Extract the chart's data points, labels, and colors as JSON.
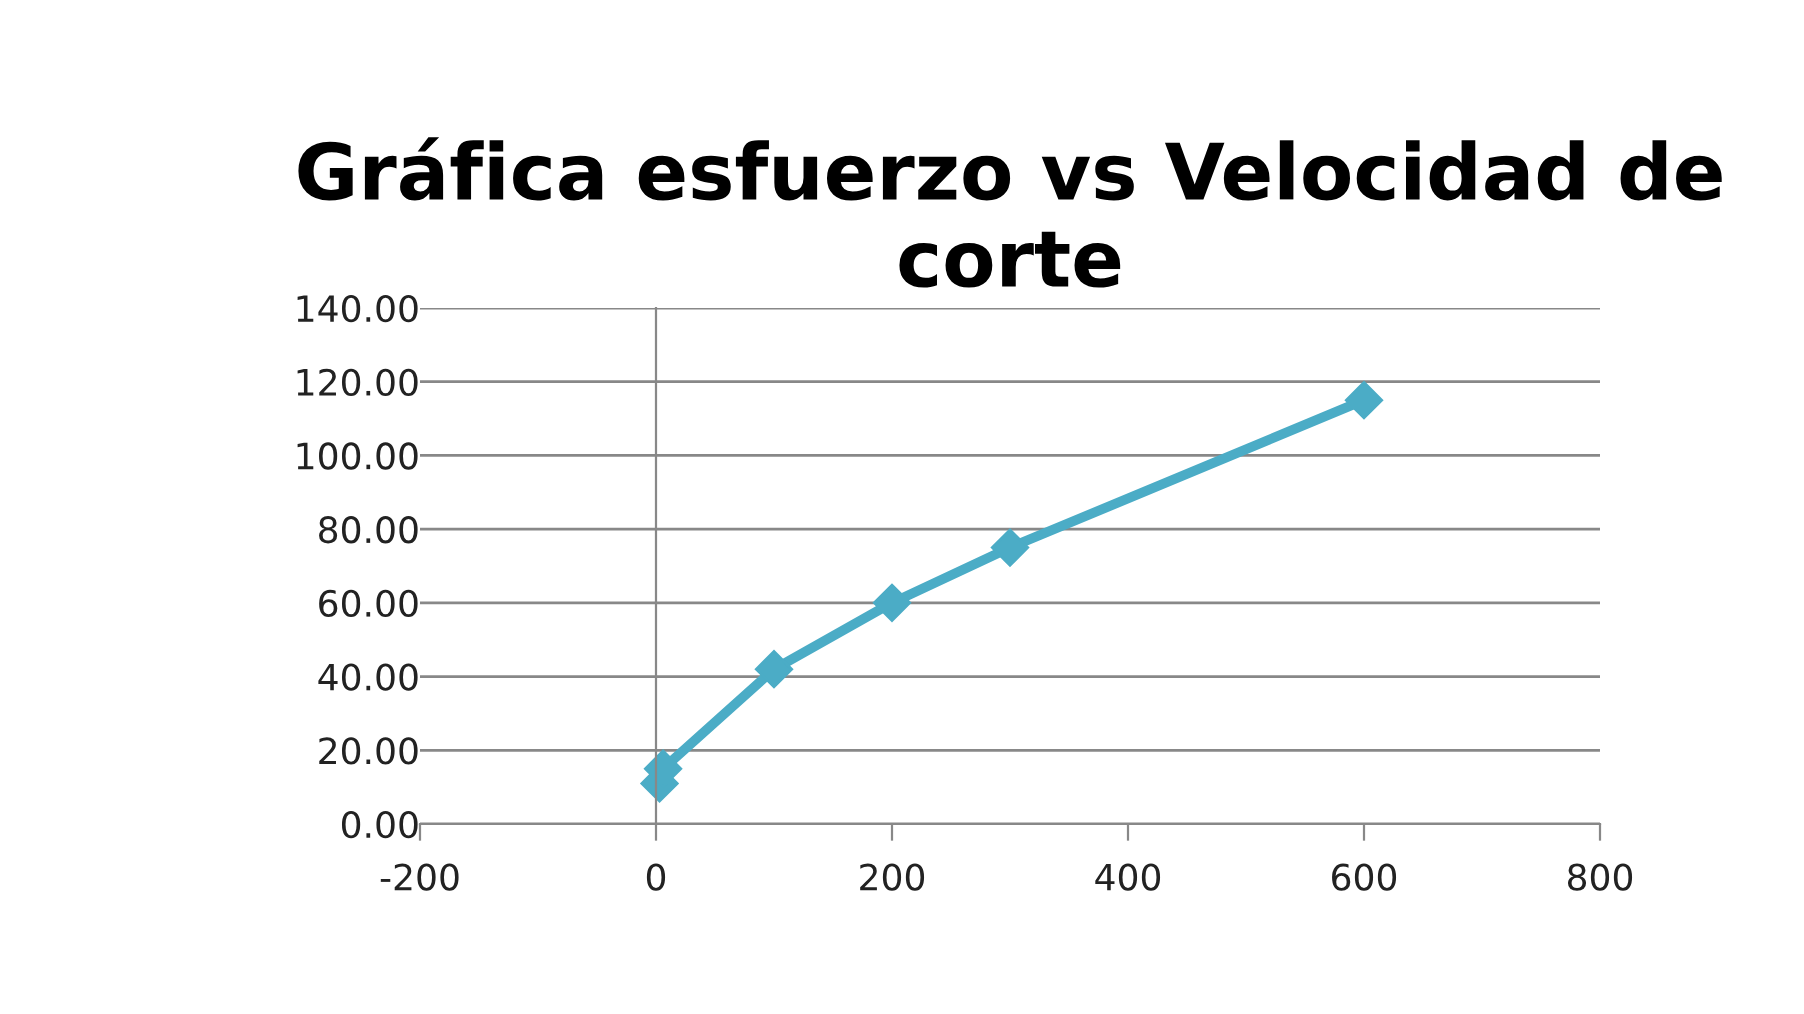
{
  "chart_data": {
    "type": "line",
    "title": "Gráfica esfuerzo vs Velocidad de corte",
    "series": [
      {
        "color": "#4bacc6",
        "marker": "diamond",
        "x": [
          3,
          6,
          100,
          200,
          300,
          600
        ],
        "values": [
          11,
          15,
          42,
          60,
          75,
          115
        ]
      }
    ],
    "xlim": [
      -200,
      800
    ],
    "xticks": [
      -200,
      0,
      200,
      400,
      600,
      800
    ],
    "ylim": [
      0,
      140
    ],
    "yticks": [
      {
        "value": 0,
        "label": "0.00"
      },
      {
        "value": 20,
        "label": "20.00"
      },
      {
        "value": 40,
        "label": "40.00"
      },
      {
        "value": 60,
        "label": "60.00"
      },
      {
        "value": 80,
        "label": "80.00"
      },
      {
        "value": 100,
        "label": "100.00"
      },
      {
        "value": 120,
        "label": "120.00"
      },
      {
        "value": 140,
        "label": "140.00"
      }
    ],
    "grid": "y",
    "legend": false
  }
}
